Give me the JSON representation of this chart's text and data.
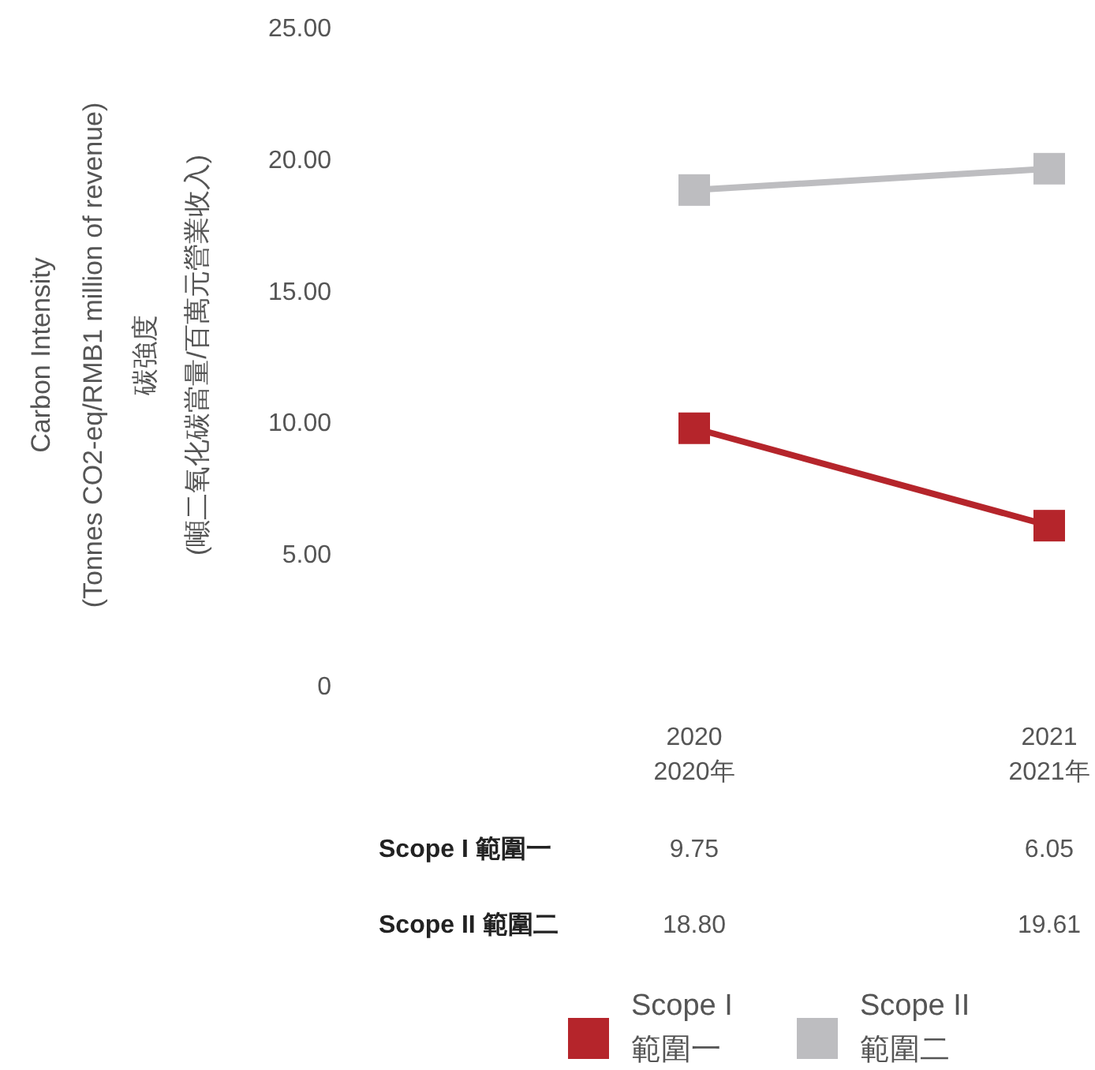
{
  "chart_data": {
    "type": "line",
    "ylabel": "Carbon Intensity\n(Tonnes CO2-eq/RMB1 million of revenue)\n碳強度\n(噸二氧化碳當量/百萬元營業收入)",
    "categories": [
      "2020\n2020年",
      "2021\n2021年"
    ],
    "series": [
      {
        "name": "Scope I 範圍一",
        "color": "#b5252b",
        "values": [
          9.75,
          6.05
        ],
        "value_labels": [
          "9.75",
          "6.05"
        ]
      },
      {
        "name": "Scope II 範圍二",
        "color": "#bdbdc0",
        "values": [
          18.8,
          19.61
        ],
        "value_labels": [
          "18.80",
          "19.61"
        ]
      }
    ],
    "ylim": [
      0,
      25
    ],
    "yticks": [
      0,
      {
        "value": 5,
        "label": "5.00"
      },
      {
        "value": 10,
        "label": "10.00"
      },
      {
        "value": 15,
        "label": "15.00"
      },
      {
        "value": 20,
        "label": "20.00"
      },
      {
        "value": 25,
        "label": "25.00"
      }
    ],
    "marker": "square",
    "line_style": "solid",
    "grid": false,
    "legend": "bottom"
  }
}
